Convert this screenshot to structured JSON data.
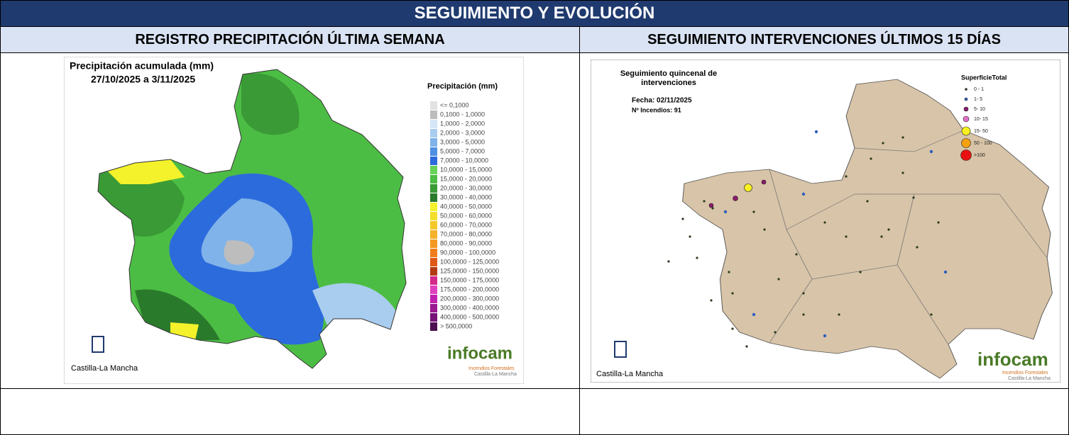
{
  "header": {
    "title": "SEGUIMIENTO Y EVOLUCIÓN"
  },
  "columns": [
    {
      "title": "REGISTRO PRECIPITACIÓN ÚLTIMA SEMANA",
      "map": {
        "title": "Precipitación acumulada (mm)",
        "period": "27/10/2025 a 3/11/2025",
        "legend_title": "Precipitación (mm)",
        "legend": [
          {
            "label": "<= 0,1000",
            "color": "#e2e2e2"
          },
          {
            "label": "0,1000 - 1,0000",
            "color": "#bdbdbd"
          },
          {
            "label": "1,0000 - 2,0000",
            "color": "#d4e6f7"
          },
          {
            "label": "2,0000 - 3,0000",
            "color": "#a9cdef"
          },
          {
            "label": "3,0000 - 5,0000",
            "color": "#80b3e9"
          },
          {
            "label": "5,0000 - 7,0000",
            "color": "#4f90e2"
          },
          {
            "label": "7,0000 - 10,0000",
            "color": "#2c6bdc"
          },
          {
            "label": "10,0000 - 15,0000",
            "color": "#67d357"
          },
          {
            "label": "15,0000 - 20,0000",
            "color": "#4cbd44"
          },
          {
            "label": "20,0000 - 30,0000",
            "color": "#3a9a36"
          },
          {
            "label": "30,0000 - 40,0000",
            "color": "#2a7a2b"
          },
          {
            "label": "40,0000 - 50,0000",
            "color": "#f4f22a"
          },
          {
            "label": "50,0000 - 60,0000",
            "color": "#f5de2b"
          },
          {
            "label": "60,0000 - 70,0000",
            "color": "#f5c92a"
          },
          {
            "label": "70,0000 - 80,0000",
            "color": "#f5b128"
          },
          {
            "label": "80,0000 - 90,0000",
            "color": "#f49a22"
          },
          {
            "label": "90,0000 - 100,0000",
            "color": "#f27d1c"
          },
          {
            "label": "100,0000 - 125,0000",
            "color": "#df5914"
          },
          {
            "label": "125,0000 - 150,0000",
            "color": "#b33a10"
          },
          {
            "label": "150,0000 - 175,0000",
            "color": "#d42a8a"
          },
          {
            "label": "175,0000 - 200,0000",
            "color": "#e040c0"
          },
          {
            "label": "200,0000 - 300,0000",
            "color": "#c020b0"
          },
          {
            "label": "300,0000 - 400,0000",
            "color": "#9a1890"
          },
          {
            "label": "400,0000 - 500,0000",
            "color": "#761478"
          },
          {
            "label": "> 500,0000",
            "color": "#4e0f52"
          }
        ],
        "logo_left": "Castilla-La Mancha",
        "logo_right": "infocam",
        "logo_right_sub1": "Incendios Forestales",
        "logo_right_sub2": "Castilla-La Mancha"
      }
    },
    {
      "title": "SEGUIMIENTO INTERVENCIONES ÚLTIMOS 15 DÍAS",
      "map": {
        "title_line1": "Seguimiento quincenal de",
        "title_line2": "intervenciones",
        "date": "Fecha: 02/11/2025",
        "fires": "Nº Incendios: 91",
        "legend_title": "SuperficieTotal",
        "legend": [
          {
            "label": "0 - 1",
            "color": "#3a4a2a"
          },
          {
            "label": "1- 5",
            "color": "#2f5fbf"
          },
          {
            "label": "5- 10",
            "color": "#8a1a6a"
          },
          {
            "label": "10- 15",
            "color": "#e070c8"
          },
          {
            "label": "15- 50",
            "color": "#f8f020"
          },
          {
            "label": "50 - 100",
            "color": "#f5a010"
          },
          {
            "label": ">100",
            "color": "#e81010"
          }
        ],
        "logo_left": "Castilla-La Mancha",
        "logo_right": "infocam",
        "logo_right_sub1": "Incendios Forestales",
        "logo_right_sub2": "Castilla-La Mancha"
      }
    }
  ]
}
